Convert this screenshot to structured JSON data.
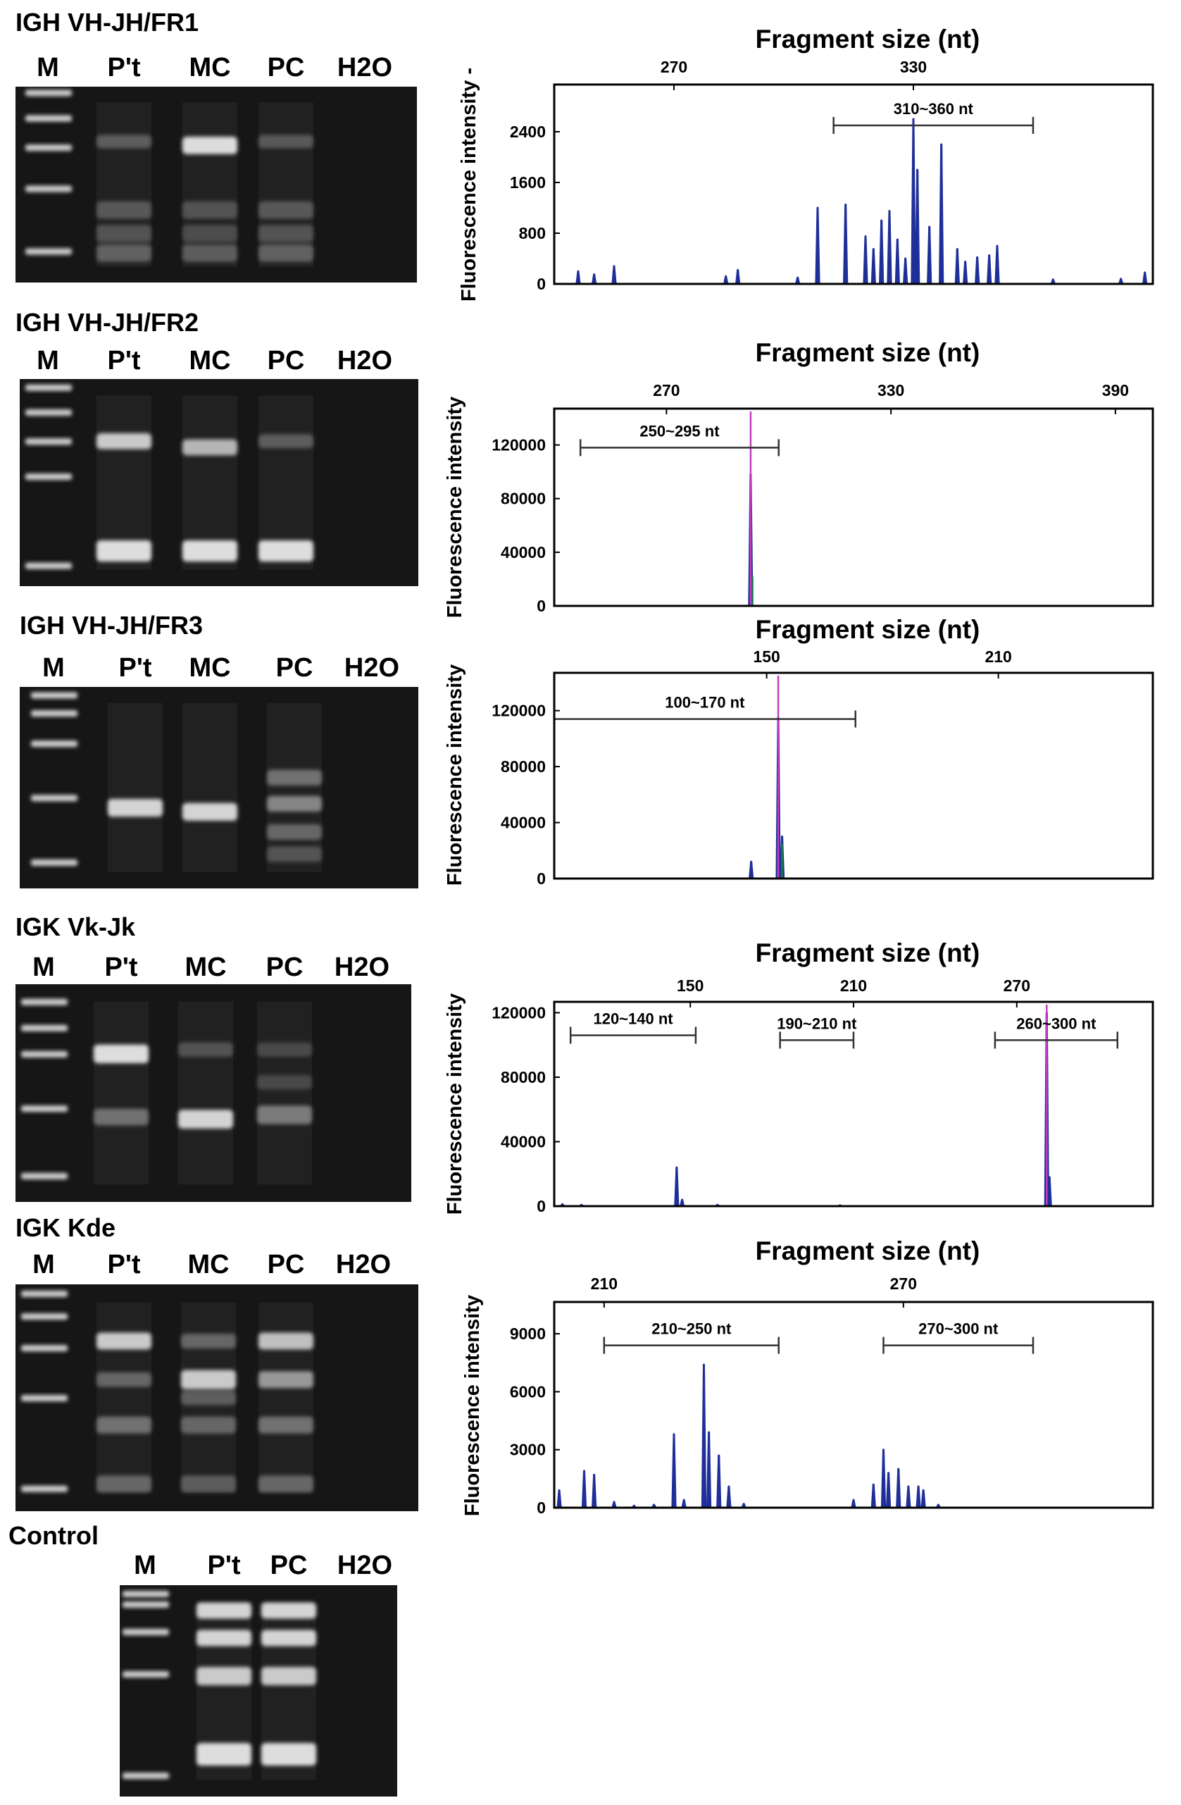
{
  "colors": {
    "gel_background": "#161616",
    "band": "#e8e8e8",
    "trace": "#1f2f99",
    "peak_green": "#1e7a4a",
    "peak_magenta": "#c23cc0",
    "range_bar": "#333333"
  },
  "panels": [
    {
      "title": "IGH VH-JH/FR1",
      "gel": {
        "lanes": [
          "M",
          "P't",
          "MC",
          "PC",
          "H2O"
        ],
        "ladder_bands": [
          0.03,
          0.16,
          0.31,
          0.52,
          0.84
        ],
        "lane_bands": [
          [
            [
              0.28,
              0.3,
              0.08
            ],
            [
              0.63,
              0.28,
              0.12
            ],
            [
              0.75,
              0.25,
              0.12
            ],
            [
              0.85,
              0.32,
              0.12
            ]
          ],
          [
            [
              0.3,
              0.95,
              0.12
            ],
            [
              0.63,
              0.25,
              0.12
            ],
            [
              0.75,
              0.22,
              0.12
            ],
            [
              0.85,
              0.3,
              0.12
            ]
          ],
          [
            [
              0.28,
              0.28,
              0.08
            ],
            [
              0.63,
              0.28,
              0.12
            ],
            [
              0.75,
              0.25,
              0.12
            ],
            [
              0.85,
              0.32,
              0.12
            ]
          ],
          []
        ]
      },
      "chart_data": {
        "type": "line",
        "title": "Fragment size (nt)",
        "xlabel": "Fragment size (nt)",
        "ylabel": "Fluorescence intensity -",
        "x_axis_position": "top",
        "x_ticks": [
          270,
          330
        ],
        "xlim": [
          240,
          390
        ],
        "y_ticks": [
          0,
          800,
          1600,
          2400
        ],
        "ylim": [
          0,
          3100
        ],
        "ranges": [
          {
            "label": "310~360 nt",
            "start": 310,
            "end": 360,
            "y": 2500
          }
        ],
        "series": [
          {
            "color": "trace",
            "peaks": [
              [
                246,
                200
              ],
              [
                250,
                150
              ],
              [
                255,
                280
              ],
              [
                283,
                120
              ],
              [
                286,
                220
              ],
              [
                301,
                100
              ],
              [
                306,
                1200
              ],
              [
                313,
                1250
              ],
              [
                318,
                750
              ],
              [
                320,
                550
              ],
              [
                322,
                1000
              ],
              [
                324,
                1150
              ],
              [
                326,
                700
              ],
              [
                328,
                400
              ],
              [
                330,
                2600
              ],
              [
                331,
                1800
              ],
              [
                334,
                900
              ],
              [
                337,
                2200
              ],
              [
                341,
                550
              ],
              [
                343,
                350
              ],
              [
                346,
                420
              ],
              [
                349,
                450
              ],
              [
                351,
                600
              ],
              [
                365,
                70
              ],
              [
                382,
                80
              ],
              [
                388,
                180
              ]
            ]
          }
        ]
      }
    },
    {
      "title": "IGH VH-JH/FR2",
      "gel": {
        "lanes": [
          "M",
          "P't",
          "MC",
          "PC",
          "H2O"
        ],
        "ladder_bands": [
          0.04,
          0.16,
          0.3,
          0.47,
          0.9
        ],
        "lane_bands": [
          [
            [
              0.3,
              0.85,
              0.1
            ],
            [
              0.83,
              0.95,
              0.15
            ]
          ],
          [
            [
              0.33,
              0.75,
              0.1
            ],
            [
              0.83,
              0.95,
              0.15
            ]
          ],
          [
            [
              0.3,
              0.3,
              0.08
            ],
            [
              0.83,
              0.95,
              0.15
            ]
          ],
          []
        ]
      },
      "chart_data": {
        "type": "line",
        "title": "Fragment size (nt)",
        "xlabel": "Fragment size (nt)",
        "ylabel": "Fluorescence intensity",
        "x_axis_position": "top",
        "x_ticks": [
          270,
          330,
          390
        ],
        "xlim": [
          240,
          400
        ],
        "y_ticks": [
          0,
          40000,
          80000,
          120000
        ],
        "ylim": [
          0,
          145000
        ],
        "ranges": [
          {
            "label": "250~295 nt",
            "start": 247,
            "end": 300,
            "y": 118000
          }
        ],
        "series": [
          {
            "color": "trace",
            "peaks": [
              [
                292.5,
                98000
              ]
            ]
          },
          {
            "color": "peak_green",
            "peaks": [
              [
                293,
                22000
              ]
            ]
          },
          {
            "color": "peak_magenta",
            "peaks": [
              [
                292.5,
                145000
              ]
            ]
          }
        ]
      }
    },
    {
      "title": "IGH VH-JH/FR3",
      "gel": {
        "lanes": [
          "M",
          "P't",
          "MC",
          "PC",
          "H2O"
        ],
        "ladder_bands": [
          0.04,
          0.13,
          0.28,
          0.55,
          0.87
        ],
        "lane_bands": [
          [
            [
              0.6,
              0.9,
              0.12
            ]
          ],
          [
            [
              0.62,
              0.9,
              0.12
            ]
          ],
          [
            [
              0.45,
              0.4,
              0.1
            ],
            [
              0.58,
              0.5,
              0.1
            ],
            [
              0.72,
              0.35,
              0.1
            ],
            [
              0.83,
              0.25,
              0.1
            ]
          ],
          []
        ]
      },
      "chart_data": {
        "type": "line",
        "title": "Fragment size (nt)",
        "xlabel": "Fragment size (nt)",
        "ylabel": "Fluorescence intensity",
        "x_axis_position": "top",
        "x_ticks": [
          150,
          210
        ],
        "xlim": [
          95,
          250
        ],
        "y_ticks": [
          0,
          40000,
          80000,
          120000
        ],
        "ylim": [
          0,
          145000
        ],
        "ranges": [
          {
            "label": "100~170 nt",
            "start": 95,
            "end": 173,
            "y": 114000
          }
        ],
        "series": [
          {
            "color": "trace",
            "peaks": [
              [
                146,
                12000
              ],
              [
                153,
                115000
              ],
              [
                154,
                30000
              ]
            ]
          },
          {
            "color": "peak_green",
            "peaks": [
              [
                153,
                40000
              ],
              [
                154,
                25000
              ],
              [
                172,
                500
              ],
              [
                219,
                500
              ]
            ]
          },
          {
            "color": "peak_magenta",
            "peaks": [
              [
                153,
                145000
              ]
            ]
          }
        ]
      }
    },
    {
      "title": "IGK Vk-Jk",
      "gel": {
        "lanes": [
          "M",
          "P't",
          "MC",
          "PC",
          "H2O"
        ],
        "ladder_bands": [
          0.08,
          0.2,
          0.32,
          0.57,
          0.88
        ],
        "lane_bands": [
          [
            [
              0.32,
              0.95,
              0.12
            ],
            [
              0.61,
              0.4,
              0.1
            ]
          ],
          [
            [
              0.3,
              0.25,
              0.08
            ],
            [
              0.62,
              0.9,
              0.12
            ]
          ],
          [
            [
              0.3,
              0.2,
              0.08
            ],
            [
              0.45,
              0.2,
              0.08
            ],
            [
              0.6,
              0.45,
              0.12
            ]
          ],
          []
        ]
      },
      "chart_data": {
        "type": "line",
        "title": "Fragment size (nt)",
        "xlabel": "Fragment size (nt)",
        "ylabel": "Fluorescence intensity",
        "x_axis_position": "top",
        "x_ticks": [
          150,
          210,
          270
        ],
        "xlim": [
          100,
          320
        ],
        "y_ticks": [
          0,
          40000,
          80000,
          120000
        ],
        "ylim": [
          0,
          125000
        ],
        "ranges": [
          {
            "label": "120~140 nt",
            "start": 106,
            "end": 152,
            "y": 106000
          },
          {
            "label": "190~210 nt",
            "start": 183,
            "end": 210,
            "y": 103000
          },
          {
            "label": "260~300 nt",
            "start": 262,
            "end": 307,
            "y": 103000
          }
        ],
        "series": [
          {
            "color": "trace",
            "peaks": [
              [
                103,
                1200
              ],
              [
                110,
                800
              ],
              [
                145,
                24000
              ],
              [
                147,
                4000
              ],
              [
                160,
                800
              ],
              [
                205,
                500
              ],
              [
                281,
                120000
              ],
              [
                282,
                18000
              ]
            ]
          },
          {
            "color": "peak_green",
            "peaks": [
              [
                281,
                40000
              ],
              [
                150,
                300
              ],
              [
                230,
                300
              ]
            ]
          },
          {
            "color": "peak_magenta",
            "peaks": [
              [
                281,
                125000
              ]
            ]
          }
        ]
      }
    },
    {
      "title": "IGK Kde",
      "gel": {
        "lanes": [
          "M",
          "P't",
          "MC",
          "PC",
          "H2O"
        ],
        "ladder_bands": [
          0.04,
          0.14,
          0.28,
          0.5,
          0.9
        ],
        "lane_bands": [
          [
            [
              0.25,
              0.85,
              0.1
            ],
            [
              0.42,
              0.35,
              0.08
            ],
            [
              0.62,
              0.4,
              0.1
            ],
            [
              0.88,
              0.35,
              0.1
            ]
          ],
          [
            [
              0.25,
              0.35,
              0.08
            ],
            [
              0.42,
              0.85,
              0.12
            ],
            [
              0.5,
              0.3,
              0.08
            ],
            [
              0.62,
              0.35,
              0.1
            ],
            [
              0.88,
              0.3,
              0.1
            ]
          ],
          [
            [
              0.25,
              0.8,
              0.1
            ],
            [
              0.42,
              0.6,
              0.1
            ],
            [
              0.62,
              0.4,
              0.1
            ],
            [
              0.88,
              0.35,
              0.1
            ]
          ],
          []
        ]
      },
      "chart_data": {
        "type": "line",
        "title": "Fragment size (nt)",
        "xlabel": "Fragment size (nt)",
        "ylabel": "Fluorescence intensity",
        "x_axis_position": "top",
        "x_ticks": [
          210,
          270
        ],
        "xlim": [
          200,
          320
        ],
        "y_ticks": [
          0,
          3000,
          6000,
          9000
        ],
        "ylim": [
          0,
          10500
        ],
        "ranges": [
          {
            "label": "210~250 nt",
            "start": 210,
            "end": 245,
            "y": 8400
          },
          {
            "label": "270~300 nt",
            "start": 266,
            "end": 296,
            "y": 8400
          }
        ],
        "series": [
          {
            "color": "trace",
            "peaks": [
              [
                201,
                900
              ],
              [
                206,
                1900
              ],
              [
                208,
                1700
              ],
              [
                212,
                300
              ],
              [
                216,
                100
              ],
              [
                220,
                150
              ],
              [
                224,
                3800
              ],
              [
                226,
                400
              ],
              [
                230,
                7400
              ],
              [
                231,
                3900
              ],
              [
                233,
                2700
              ],
              [
                235,
                1100
              ],
              [
                238,
                200
              ],
              [
                260,
                400
              ],
              [
                264,
                1200
              ],
              [
                266,
                3000
              ],
              [
                267,
                1800
              ],
              [
                269,
                2000
              ],
              [
                271,
                1100
              ],
              [
                273,
                1100
              ],
              [
                274,
                900
              ],
              [
                277,
                150
              ]
            ]
          }
        ]
      }
    }
  ],
  "control": {
    "title": "Control",
    "gel": {
      "lanes": [
        "M",
        "P't",
        "PC",
        "H2O"
      ],
      "ladder_bands": [
        0.04,
        0.09,
        0.22,
        0.42,
        0.9
      ],
      "lane_bands": [
        [
          [
            0.12,
            0.9,
            0.1
          ],
          [
            0.25,
            0.9,
            0.1
          ],
          [
            0.43,
            0.85,
            0.12
          ],
          [
            0.8,
            0.95,
            0.16
          ]
        ],
        [
          [
            0.12,
            0.9,
            0.1
          ],
          [
            0.25,
            0.9,
            0.1
          ],
          [
            0.43,
            0.85,
            0.12
          ],
          [
            0.8,
            0.95,
            0.16
          ]
        ],
        []
      ]
    }
  }
}
